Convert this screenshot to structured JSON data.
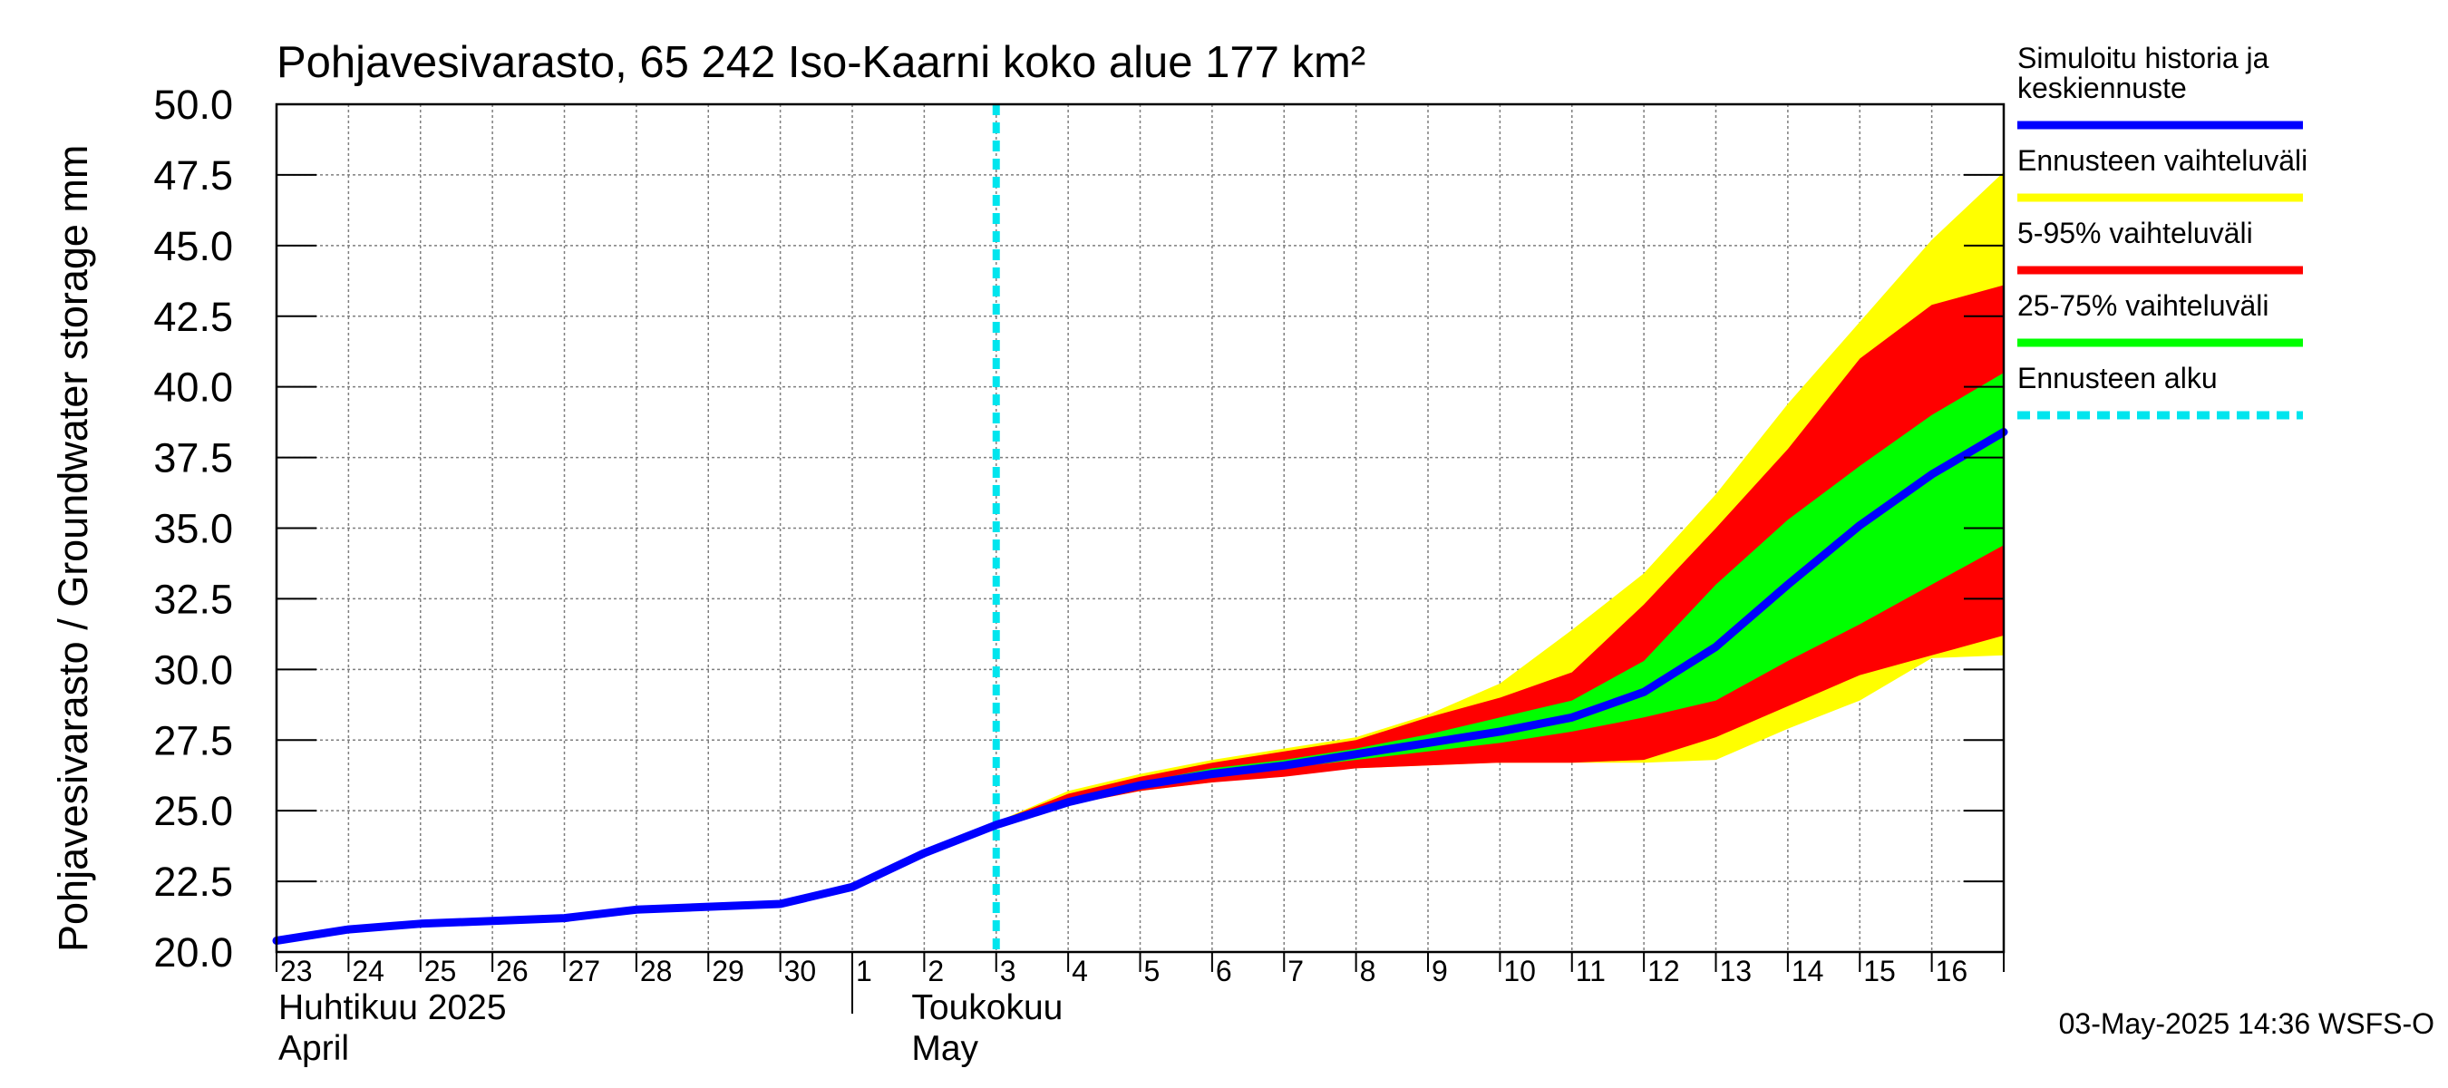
{
  "chart_data": {
    "type": "area",
    "title": "Pohjavesivarasto, 65 242 Iso-Kaarni koko alue 177 km²",
    "ylabel": "Pohjavesivarasto / Groundwater storage   mm",
    "ylim": [
      20.0,
      50.0
    ],
    "yticks": [
      "20.0",
      "22.5",
      "25.0",
      "27.5",
      "30.0",
      "32.5",
      "35.0",
      "37.5",
      "40.0",
      "42.5",
      "45.0",
      "47.5",
      "50.0"
    ],
    "x": [
      23,
      24,
      25,
      26,
      27,
      28,
      29,
      30,
      31,
      32,
      33,
      34,
      35,
      36,
      37,
      38,
      39,
      40,
      41,
      42,
      43,
      44,
      45,
      46,
      47
    ],
    "xlim": [
      23,
      47
    ],
    "day_ticks": [
      "23",
      "24",
      "25",
      "26",
      "27",
      "28",
      "29",
      "30",
      "1",
      "2",
      "3",
      "4",
      "5",
      "6",
      "7",
      "8",
      "9",
      "10",
      "11",
      "12",
      "13",
      "14",
      "15",
      "16"
    ],
    "month_labels": {
      "april_fi": "Huhtikuu  2025",
      "april_en": "April",
      "may_fi": "Toukokuu",
      "may_en": "May"
    },
    "forecast_start": 33.0,
    "series": [
      {
        "name": "Simuloitu historia ja keskiennuste",
        "color": "#0000ff",
        "values": [
          20.4,
          20.8,
          21.0,
          21.1,
          21.2,
          21.5,
          21.6,
          21.7,
          22.3,
          23.5,
          24.5,
          25.3,
          25.9,
          26.3,
          26.6,
          27.0,
          27.4,
          27.8,
          28.3,
          29.2,
          30.8,
          33.0,
          35.1,
          36.9,
          38.4
        ]
      }
    ],
    "bands": [
      {
        "name": "Ennusteen vaihteluväli",
        "color": "#ffff00",
        "lower": [
          null,
          null,
          null,
          null,
          null,
          null,
          null,
          null,
          null,
          null,
          24.5,
          25.2,
          25.7,
          26.0,
          26.3,
          26.5,
          26.6,
          26.7,
          26.7,
          26.7,
          26.8,
          27.9,
          28.9,
          30.4,
          30.5
        ],
        "upper": [
          null,
          null,
          null,
          null,
          null,
          null,
          null,
          null,
          null,
          null,
          24.6,
          25.7,
          26.3,
          26.8,
          27.2,
          27.6,
          28.4,
          29.5,
          31.4,
          33.4,
          36.2,
          39.4,
          42.3,
          45.2,
          47.6
        ]
      },
      {
        "name": "5-95% vaihteluväli",
        "color": "#ff0000",
        "lower": [
          null,
          null,
          null,
          null,
          null,
          null,
          null,
          null,
          null,
          null,
          24.5,
          25.2,
          25.7,
          26.0,
          26.2,
          26.5,
          26.6,
          26.7,
          26.7,
          26.8,
          27.6,
          28.7,
          29.8,
          30.5,
          31.2
        ],
        "upper": [
          null,
          null,
          null,
          null,
          null,
          null,
          null,
          null,
          null,
          null,
          24.6,
          25.6,
          26.2,
          26.7,
          27.1,
          27.5,
          28.3,
          29.0,
          29.9,
          32.3,
          35.0,
          37.8,
          41.0,
          42.9,
          43.6
        ]
      },
      {
        "name": "25-75% vaihteluväli",
        "color": "#00ff00",
        "lower": [
          null,
          null,
          null,
          null,
          null,
          null,
          null,
          null,
          null,
          null,
          24.5,
          25.3,
          25.8,
          26.2,
          26.5,
          26.8,
          27.1,
          27.4,
          27.8,
          28.3,
          28.9,
          30.3,
          31.6,
          33.0,
          34.4
        ],
        "upper": [
          null,
          null,
          null,
          null,
          null,
          null,
          null,
          null,
          null,
          null,
          24.6,
          25.4,
          26.0,
          26.5,
          26.8,
          27.2,
          27.7,
          28.3,
          28.9,
          30.3,
          33.0,
          35.3,
          37.2,
          39.0,
          40.5
        ]
      }
    ],
    "legend": [
      {
        "label": "Simuloitu historia ja\nkeskiennuste",
        "color": "#0000ff",
        "style": "solid"
      },
      {
        "label": "Ennusteen vaihteluväli",
        "color": "#ffff00",
        "style": "solid"
      },
      {
        "label": "5-95% vaihteluväli",
        "color": "#ff0000",
        "style": "solid"
      },
      {
        "label": "25-75% vaihteluväli",
        "color": "#00ff00",
        "style": "solid"
      },
      {
        "label": "Ennusteen alku",
        "color": "#00e5ee",
        "style": "dashed"
      }
    ],
    "legend_position": "right",
    "grid": true,
    "footer": "03-May-2025 14:36 WSFS-O"
  }
}
